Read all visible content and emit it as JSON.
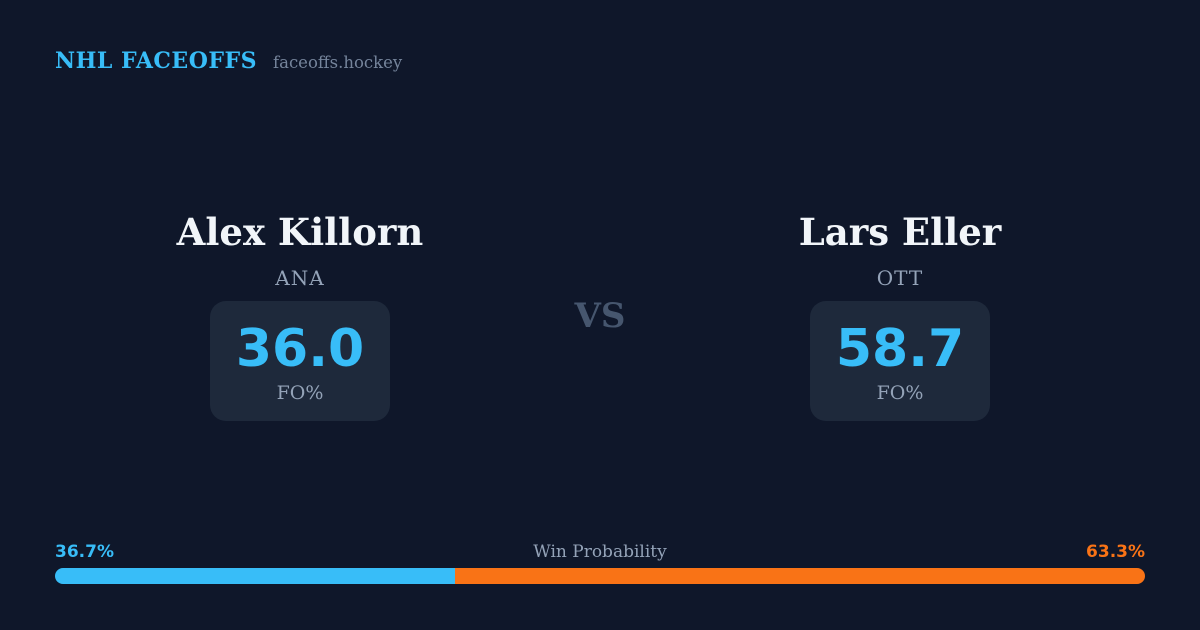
{
  "header": {
    "title": "NHL FACEOFFS",
    "domain": "faceoffs.hockey"
  },
  "vs_label": "VS",
  "players": {
    "left": {
      "name": "Alex Killorn",
      "team": "ANA",
      "stat_value": "36.0",
      "stat_label": "FO%"
    },
    "right": {
      "name": "Lars Eller",
      "team": "OTT",
      "stat_value": "58.7",
      "stat_label": "FO%"
    }
  },
  "win_probability": {
    "label": "Win Probability",
    "left_pct": 36.7,
    "right_pct": 63.3,
    "left_label": "36.7%",
    "right_label": "63.3%"
  },
  "colors": {
    "accent_blue": "#38bdf8",
    "accent_orange": "#f97316",
    "background": "#0f172a",
    "stat_box": "#1e293b"
  }
}
